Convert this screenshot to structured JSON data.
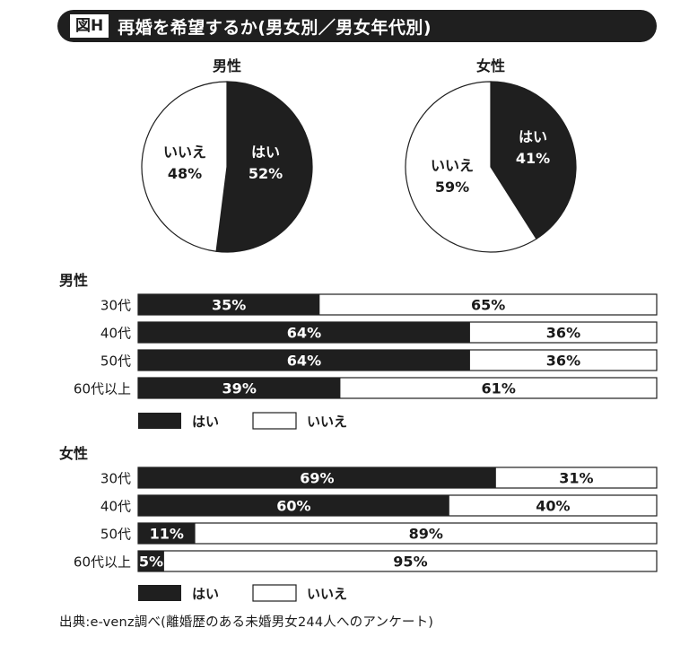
{
  "header": {
    "figure_label": "図H",
    "title": "再婚を希望するか(男女別／男女年代別)"
  },
  "colors": {
    "yes": "#1f1f1f",
    "no": "#ffffff",
    "border": "#1f1f1f"
  },
  "chart_data": [
    {
      "type": "pie",
      "title": "男性",
      "slices": [
        {
          "label": "はい",
          "value": 52,
          "display": "52%"
        },
        {
          "label": "いいえ",
          "value": 48,
          "display": "48%"
        }
      ]
    },
    {
      "type": "pie",
      "title": "女性",
      "slices": [
        {
          "label": "はい",
          "value": 41,
          "display": "41%"
        },
        {
          "label": "いいえ",
          "value": 59,
          "display": "59%"
        }
      ]
    },
    {
      "type": "bar",
      "orientation": "horizontal",
      "stacked": true,
      "title": "男性",
      "categories": [
        "30代",
        "40代",
        "50代",
        "60代以上"
      ],
      "series": [
        {
          "name": "はい",
          "values": [
            35,
            64,
            64,
            39
          ]
        },
        {
          "name": "いいえ",
          "values": [
            65,
            36,
            36,
            61
          ]
        }
      ],
      "xlim": [
        0,
        100
      ]
    },
    {
      "type": "bar",
      "orientation": "horizontal",
      "stacked": true,
      "title": "女性",
      "categories": [
        "30代",
        "40代",
        "50代",
        "60代以上"
      ],
      "series": [
        {
          "name": "はい",
          "values": [
            69,
            60,
            11,
            5
          ]
        },
        {
          "name": "いいえ",
          "values": [
            31,
            40,
            89,
            95
          ]
        }
      ],
      "xlim": [
        0,
        100
      ]
    }
  ],
  "legend": {
    "yes": "はい",
    "no": "いいえ"
  },
  "source": "出典:e-venz調べ(離婚歴のある未婚男女244人へのアンケート)"
}
